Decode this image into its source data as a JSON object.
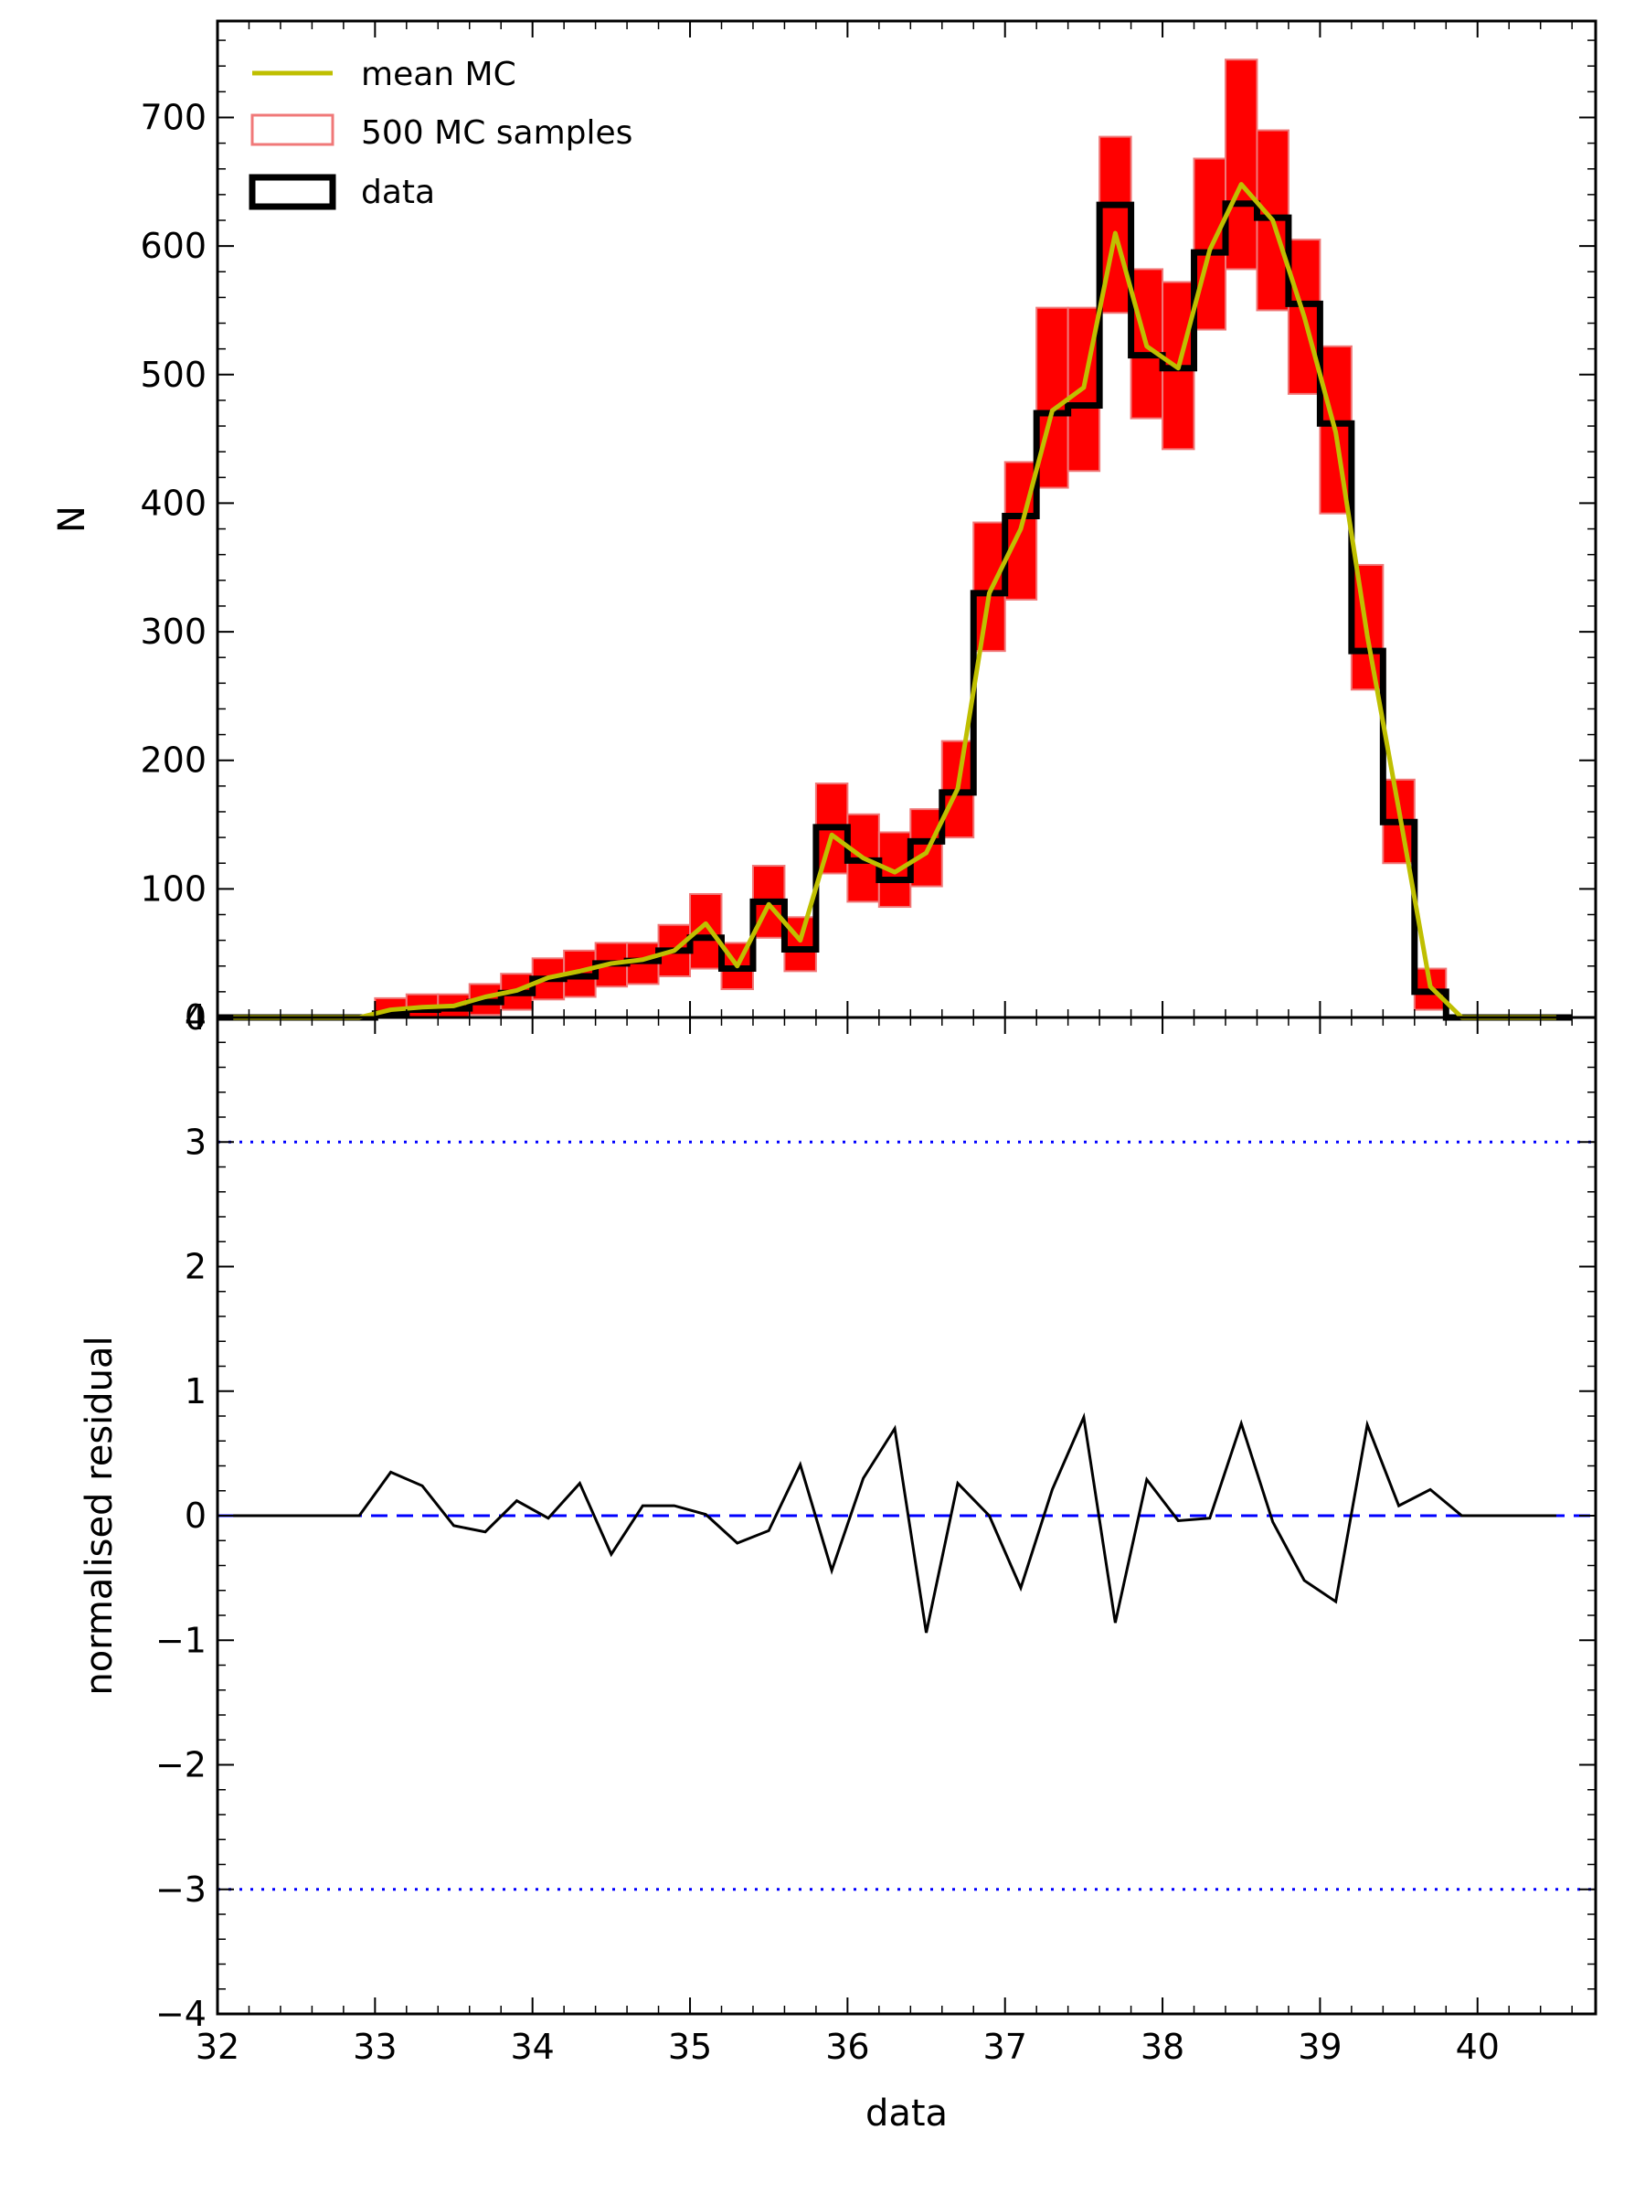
{
  "chart_data": [
    {
      "type": "histogram",
      "panel": "top",
      "ylabel": "N",
      "xlim": [
        32,
        40.75
      ],
      "ylim": [
        0,
        775
      ],
      "xticks": [
        32,
        33,
        34,
        35,
        36,
        37,
        38,
        39,
        40
      ],
      "yticks": [
        0,
        100,
        200,
        300,
        400,
        500,
        600,
        700
      ],
      "ytick_labels": [
        "0",
        "100",
        "200",
        "300",
        "400",
        "500",
        "600",
        "700"
      ],
      "bin_edges": [
        32.0,
        32.2,
        32.4,
        32.6,
        32.8,
        33.0,
        33.2,
        33.4,
        33.6,
        33.8,
        34.0,
        34.2,
        34.4,
        34.6,
        34.8,
        35.0,
        35.2,
        35.4,
        35.6,
        35.8,
        36.0,
        36.2,
        36.4,
        36.6,
        36.8,
        37.0,
        37.2,
        37.4,
        37.6,
        37.8,
        38.0,
        38.2,
        38.4,
        38.6,
        38.8,
        39.0,
        39.2,
        39.4,
        39.6,
        39.8,
        40.0,
        40.2,
        40.4,
        40.6
      ],
      "bin_centers": [
        32.1,
        32.3,
        32.5,
        32.7,
        32.9,
        33.1,
        33.3,
        33.5,
        33.7,
        33.9,
        34.1,
        34.3,
        34.5,
        34.7,
        34.9,
        35.1,
        35.3,
        35.5,
        35.7,
        35.9,
        36.1,
        36.3,
        36.5,
        36.7,
        36.9,
        37.1,
        37.3,
        37.5,
        37.7,
        37.9,
        38.1,
        38.3,
        38.5,
        38.7,
        38.9,
        39.1,
        39.3,
        39.5,
        39.7,
        39.9,
        40.1,
        40.3,
        40.5
      ],
      "series": [
        {
          "name": "data",
          "kind": "step",
          "color": "#000000",
          "values": [
            0,
            0,
            0,
            0,
            0,
            3,
            6,
            7,
            12,
            19,
            30,
            32,
            42,
            44,
            52,
            62,
            38,
            90,
            53,
            148,
            122,
            107,
            137,
            175,
            330,
            390,
            470,
            476,
            632,
            515,
            505,
            595,
            633,
            622,
            555,
            462,
            285,
            152,
            20,
            0,
            0,
            0,
            0
          ]
        },
        {
          "name": "mean MC",
          "kind": "line",
          "color": "#bfbf00",
          "values": [
            0,
            0,
            0,
            0,
            0,
            6,
            8,
            9,
            16,
            21,
            31,
            36,
            42,
            45,
            52,
            73,
            40,
            88,
            60,
            142,
            124,
            113,
            128,
            178,
            330,
            380,
            472,
            490,
            610,
            522,
            505,
            597,
            648,
            620,
            545,
            455,
            297,
            162,
            24,
            0,
            0,
            0,
            0
          ]
        },
        {
          "name": "500 MC samples",
          "kind": "step-band",
          "color": "#ff0000",
          "edge_color": "#f07878",
          "lower": [
            0,
            0,
            0,
            0,
            0,
            0,
            0,
            0,
            2,
            6,
            14,
            16,
            24,
            26,
            32,
            38,
            22,
            62,
            36,
            112,
            90,
            86,
            102,
            140,
            285,
            325,
            412,
            425,
            548,
            466,
            442,
            535,
            582,
            550,
            485,
            392,
            255,
            120,
            6,
            0,
            0,
            0,
            0
          ],
          "upper": [
            0,
            0,
            0,
            0,
            0,
            15,
            18,
            18,
            26,
            34,
            46,
            52,
            58,
            58,
            72,
            96,
            58,
            118,
            78,
            182,
            158,
            144,
            162,
            215,
            385,
            432,
            552,
            552,
            685,
            582,
            572,
            668,
            745,
            690,
            605,
            522,
            352,
            185,
            38,
            0,
            0,
            0,
            0
          ]
        }
      ],
      "legend": {
        "placement": "top-left",
        "entries": [
          "mean MC",
          "500 MC samples",
          "data"
        ]
      }
    },
    {
      "type": "line",
      "panel": "bottom",
      "xlabel": "data",
      "ylabel": "normalised residual",
      "xlim": [
        32,
        40.75
      ],
      "ylim": [
        -4,
        4
      ],
      "xticks": [
        32,
        33,
        34,
        35,
        36,
        37,
        38,
        39,
        40
      ],
      "xtick_labels": [
        "32",
        "33",
        "34",
        "35",
        "36",
        "37",
        "38",
        "39",
        "40"
      ],
      "yticks": [
        -4,
        -3,
        -2,
        -1,
        0,
        1,
        2,
        3,
        4
      ],
      "ytick_labels": [
        "−4",
        "−3",
        "−2",
        "−1",
        "0",
        "1",
        "2",
        "3",
        "4"
      ],
      "reference_lines": [
        {
          "y": 3,
          "style": "dotted",
          "color": "#0000ff"
        },
        {
          "y": 0,
          "style": "dashed",
          "color": "#0000ff"
        },
        {
          "y": -3,
          "style": "dotted",
          "color": "#0000ff"
        }
      ],
      "series": [
        {
          "name": "residual",
          "color": "#000000",
          "x": [
            32.1,
            32.3,
            32.5,
            32.7,
            32.9,
            33.1,
            33.3,
            33.5,
            33.7,
            33.9,
            34.1,
            34.3,
            34.5,
            34.7,
            34.9,
            35.1,
            35.3,
            35.5,
            35.7,
            35.9,
            36.1,
            36.3,
            36.5,
            36.7,
            36.9,
            37.1,
            37.3,
            37.5,
            37.7,
            37.9,
            38.1,
            38.3,
            38.5,
            38.7,
            38.9,
            39.1,
            39.3,
            39.5,
            39.7,
            39.9,
            40.1,
            40.3,
            40.5
          ],
          "y": [
            0,
            0,
            0,
            0,
            0,
            0.35,
            0.24,
            -0.08,
            -0.13,
            0.12,
            -0.02,
            0.26,
            -0.31,
            0.08,
            0.08,
            0.01,
            -0.22,
            -0.12,
            0.41,
            -0.44,
            0.3,
            0.7,
            -0.94,
            0.26,
            0,
            -0.58,
            0.21,
            0.79,
            -0.86,
            0.29,
            -0.04,
            -0.02,
            0.74,
            -0.05,
            -0.52,
            -0.69,
            0.73,
            0.08,
            0.21,
            0,
            0,
            0,
            0
          ]
        }
      ]
    }
  ]
}
